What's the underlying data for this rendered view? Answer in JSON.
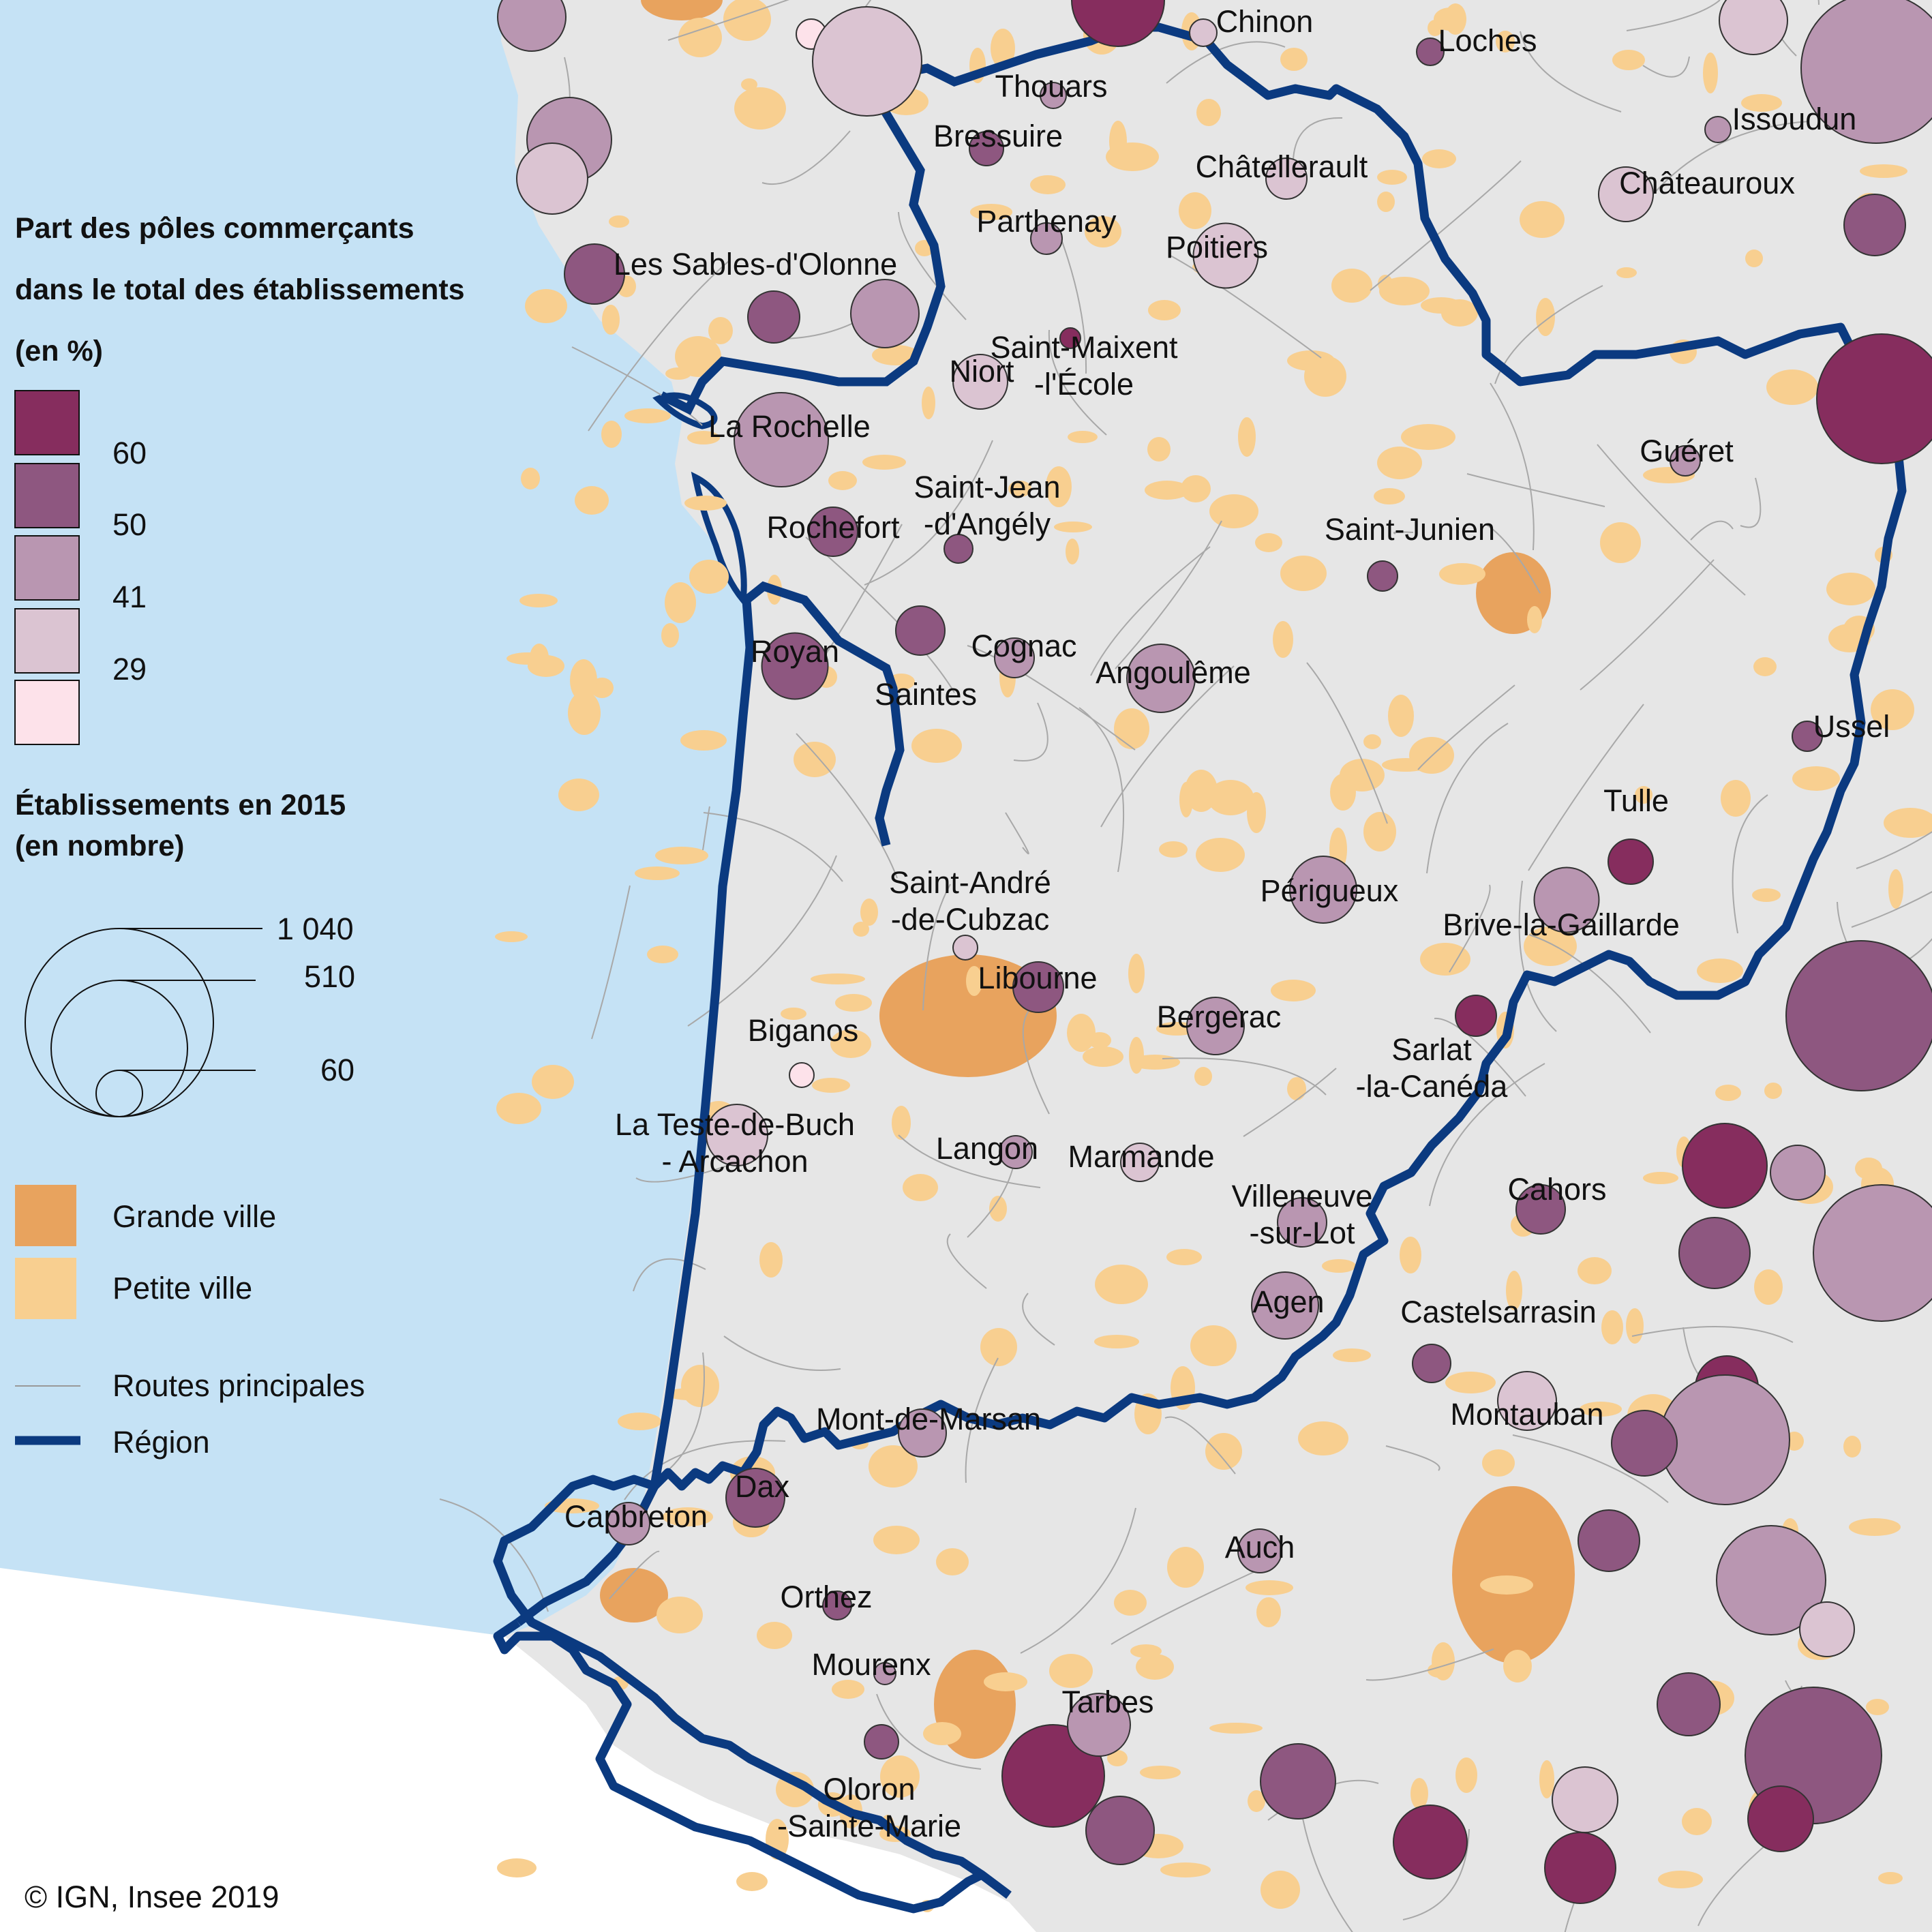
{
  "legend": {
    "share_title": [
      "Part des pôles commerçants",
      "dans le total des établissements",
      "(en %)"
    ],
    "share_classes": [
      {
        "label": "60",
        "color": "#862d5e"
      },
      {
        "label": "50",
        "color": "#8e5780"
      },
      {
        "label": "41",
        "color": "#b996b1"
      },
      {
        "label": "29",
        "color": "#dbc4d2"
      },
      {
        "label": "",
        "color": "#fde2ea"
      }
    ],
    "count_title": [
      "Établissements en 2015",
      "(en nombre)"
    ],
    "count_values": [
      "1 040",
      "510",
      "60"
    ],
    "area_items": [
      {
        "label": "Grande ville",
        "color": "#e8a35e"
      },
      {
        "label": "Petite ville",
        "color": "#f8cf90"
      }
    ],
    "line_items": [
      {
        "label": "Routes principales",
        "color": "#999999"
      },
      {
        "label": "Région",
        "color": "#0b3a80"
      }
    ]
  },
  "copyright": "© IGN, Insee 2019",
  "colors": {
    "ocean": "#c5e2f5",
    "land": "#e6e6e6",
    "outside": "#ffffff",
    "region_border": "#0b3a80",
    "road": "#a8a8a8"
  },
  "cities": [
    {
      "name": "Chinon",
      "cls": 3,
      "size": 40
    },
    {
      "name": "Loches",
      "cls": 1,
      "size": 40
    },
    {
      "name": "Thouars",
      "cls": 2,
      "size": 38
    },
    {
      "name": "Bressuire",
      "cls": 1,
      "size": 50
    },
    {
      "name": "Issoudun",
      "cls": 2,
      "size": 38
    },
    {
      "name": "Châtellerault",
      "cls": 3,
      "size": 60
    },
    {
      "name": "Châteauroux",
      "cls": 3,
      "size": 80
    },
    {
      "name": "Parthenay",
      "cls": 2,
      "size": 46
    },
    {
      "name": "Poitiers",
      "cls": 3,
      "size": 95
    },
    {
      "name": "Les Sables-d'Olonne",
      "cls": 1,
      "size": 88
    },
    {
      "name": "Saint-Maixent-l'École",
      "cls": 0,
      "size": 30
    },
    {
      "name": "Niort",
      "cls": 3,
      "size": 80
    },
    {
      "name": "La Rochelle",
      "cls": 2,
      "size": 138
    },
    {
      "name": "Guéret",
      "cls": 2,
      "size": 44
    },
    {
      "name": "Saint-Jean-d'Angély",
      "cls": 1,
      "size": 42
    },
    {
      "name": "Rochefort",
      "cls": 1,
      "size": 72
    },
    {
      "name": "Saint-Junien",
      "cls": 1,
      "size": 44
    },
    {
      "name": "Royan",
      "cls": 1,
      "size": 97
    },
    {
      "name": "Saintes",
      "cls": 1,
      "size": 72
    },
    {
      "name": "Cognac",
      "cls": 2,
      "size": 58
    },
    {
      "name": "Angoulême",
      "cls": 2,
      "size": 100
    },
    {
      "name": "Ussel",
      "cls": 1,
      "size": 44
    },
    {
      "name": "Tulle",
      "cls": 0,
      "size": 66
    },
    {
      "name": "Périgueux",
      "cls": 2,
      "size": 98
    },
    {
      "name": "Brive-la-Gaillarde",
      "cls": 2,
      "size": 95
    },
    {
      "name": "Saint-André-de-Cubzac",
      "cls": 3,
      "size": 36
    },
    {
      "name": "Libourne",
      "cls": 1,
      "size": 74
    },
    {
      "name": "Bergerac",
      "cls": 2,
      "size": 84
    },
    {
      "name": "Sarlat-la-Canéda",
      "cls": 0,
      "size": 60
    },
    {
      "name": "Biganos",
      "cls": 4,
      "size": 36
    },
    {
      "name": "La Teste-de-Buch - Arcachon",
      "cls": 3,
      "size": 90
    },
    {
      "name": "Langon",
      "cls": 2,
      "size": 48
    },
    {
      "name": "Marmande",
      "cls": 3,
      "size": 56
    },
    {
      "name": "Villeneuve-sur-Lot",
      "cls": 2,
      "size": 72
    },
    {
      "name": "Cahors",
      "cls": 1,
      "size": 72
    },
    {
      "name": "Agen",
      "cls": 2,
      "size": 98
    },
    {
      "name": "Castelsarrasin",
      "cls": 1,
      "size": 56
    },
    {
      "name": "Montauban",
      "cls": 3,
      "size": 86
    },
    {
      "name": "Mont-de-Marsan",
      "cls": 2,
      "size": 70
    },
    {
      "name": "Dax",
      "cls": 1,
      "size": 86
    },
    {
      "name": "Capbreton",
      "cls": 2,
      "size": 62
    },
    {
      "name": "Auch",
      "cls": 2,
      "size": 64
    },
    {
      "name": "Orthez",
      "cls": 1,
      "size": 42
    },
    {
      "name": "Mourenx",
      "cls": 2,
      "size": 32
    },
    {
      "name": "Tarbes",
      "cls": 2,
      "size": 92
    },
    {
      "name": "Oloron-Sainte-Marie",
      "cls": 1,
      "size": 50
    }
  ]
}
